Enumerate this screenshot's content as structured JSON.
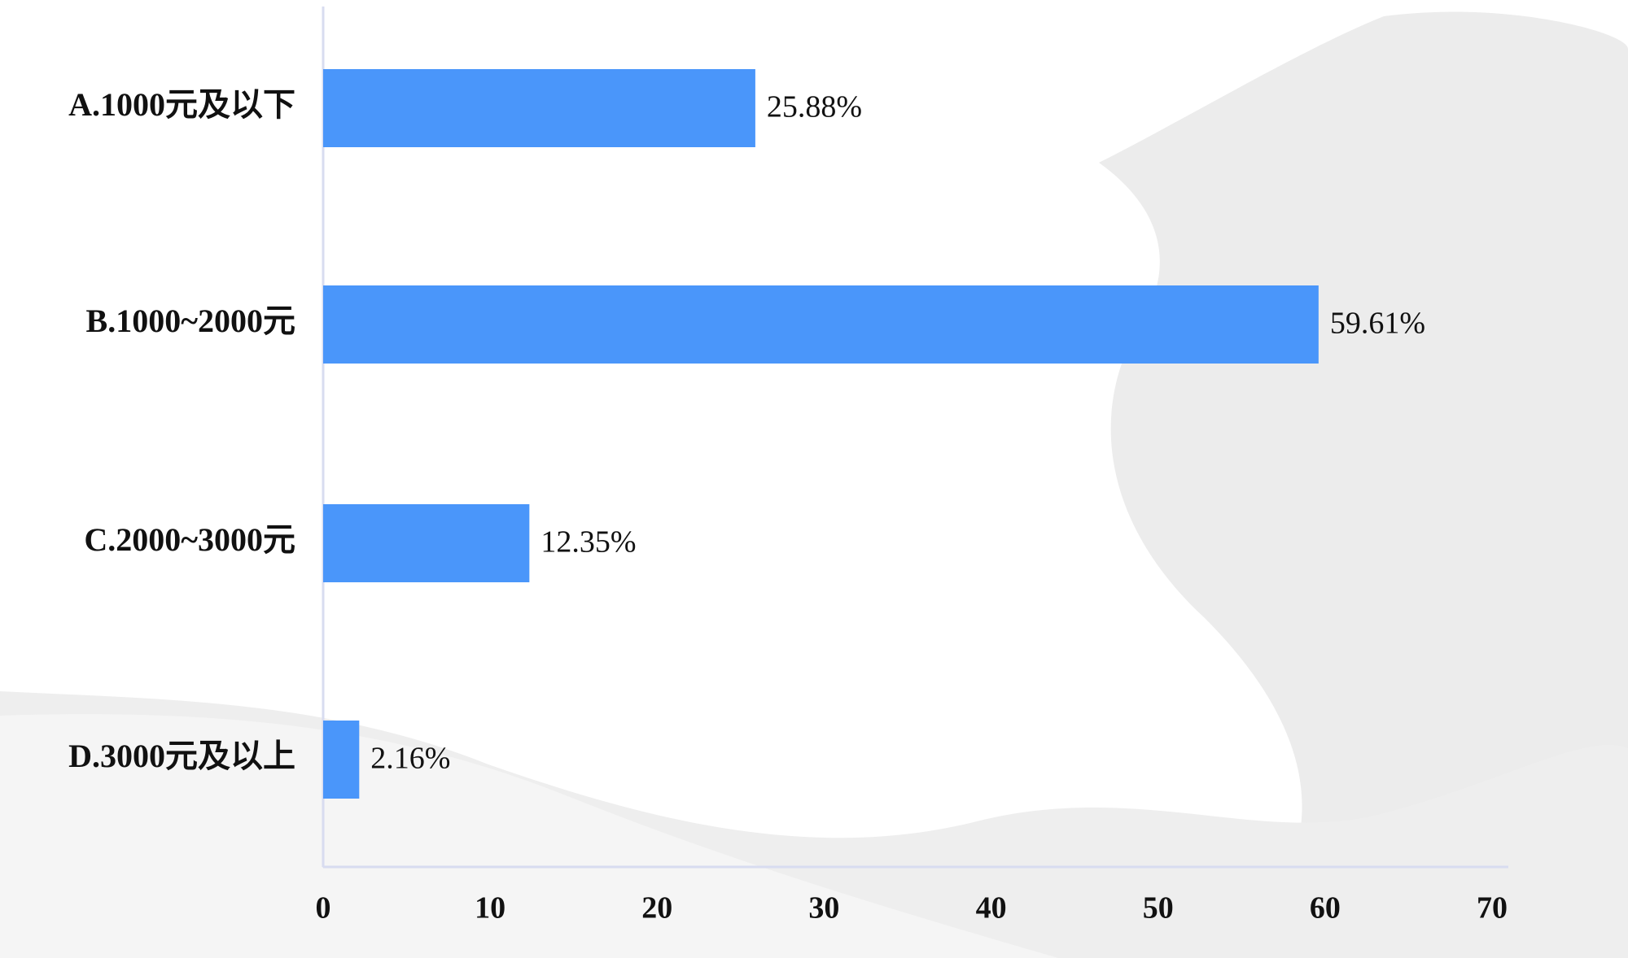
{
  "chart_data": {
    "type": "bar",
    "orientation": "horizontal",
    "categories": [
      "A.1000元及以下",
      "B.1000~2000元",
      "C.2000~3000元",
      "D.3000元及以上"
    ],
    "values": [
      25.88,
      59.61,
      12.35,
      2.16
    ],
    "value_labels": [
      "25.88%",
      "59.61%",
      "12.35%",
      "2.16%"
    ],
    "color": "#4a96fa",
    "xlim": [
      0,
      70
    ],
    "xticks": [
      0,
      10,
      20,
      30,
      40,
      50,
      60,
      70
    ],
    "grid": false
  }
}
